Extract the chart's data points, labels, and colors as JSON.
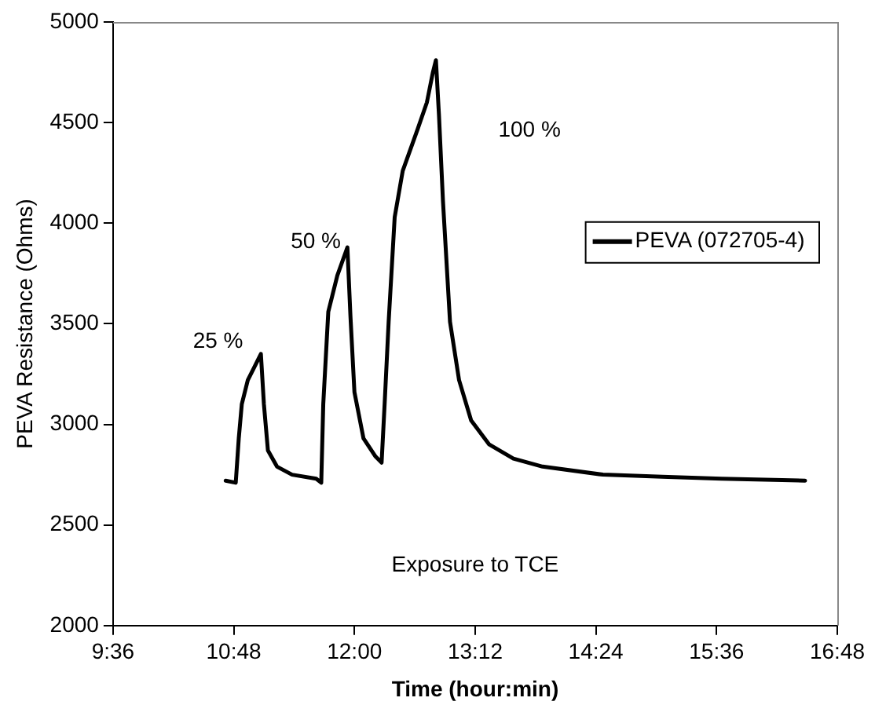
{
  "chart_data": {
    "type": "line",
    "xlabel": "Time (hour:min)",
    "ylabel": "PEVA Resistance (Ohms)",
    "xlim": [
      9.6,
      16.8
    ],
    "ylim": [
      2000,
      5000
    ],
    "xticks": [
      {
        "value": 9.6,
        "label": "9:36"
      },
      {
        "value": 10.8,
        "label": "10:48"
      },
      {
        "value": 12.0,
        "label": "12:00"
      },
      {
        "value": 13.2,
        "label": "13:12"
      },
      {
        "value": 14.4,
        "label": "14:24"
      },
      {
        "value": 15.6,
        "label": "15:36"
      },
      {
        "value": 16.8,
        "label": "16:48"
      }
    ],
    "yticks": [
      2000,
      2500,
      3000,
      3500,
      4000,
      4500,
      5000
    ],
    "grid": false,
    "legend": "right",
    "marker": "none",
    "line_style": "solid",
    "annotations": [
      "25 %",
      "50 %",
      "100 %",
      "Exposure to TCE"
    ],
    "series": [
      {
        "name": "PEVA (072705-4)",
        "color": "#000000",
        "x": [
          10.72,
          10.82,
          10.85,
          10.88,
          10.94,
          11.0,
          11.07,
          11.1,
          11.14,
          11.23,
          11.38,
          11.62,
          11.67,
          11.69,
          11.74,
          11.83,
          11.93,
          11.96,
          12.0,
          12.09,
          12.21,
          12.27,
          12.3,
          12.34,
          12.4,
          12.48,
          12.63,
          12.72,
          12.78,
          12.81,
          12.84,
          12.88,
          12.95,
          13.04,
          13.16,
          13.34,
          13.58,
          13.87,
          14.47,
          15.06,
          15.65,
          16.48
        ],
        "values": [
          2720,
          2710,
          2930,
          3100,
          3220,
          3280,
          3350,
          3100,
          2870,
          2790,
          2750,
          2730,
          2710,
          3100,
          3560,
          3740,
          3880,
          3540,
          3160,
          2930,
          2840,
          2810,
          3100,
          3510,
          4030,
          4260,
          4470,
          4600,
          4750,
          4810,
          4540,
          4110,
          3510,
          3220,
          3020,
          2900,
          2830,
          2790,
          2750,
          2740,
          2730,
          2720
        ]
      }
    ]
  }
}
